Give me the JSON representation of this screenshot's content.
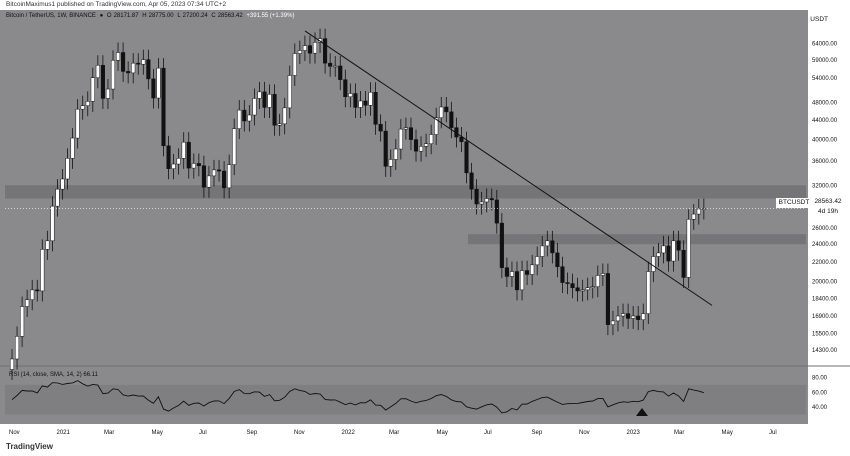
{
  "topbar": {
    "publisher_text": "BitcoinMaximus1 published on TradingView.com, Apr 05, 2023 07:34 UTC+2"
  },
  "hud": {
    "symbol": "Bitcoin / TetherUS, 1W, BINANCE",
    "open": "28171.87",
    "high": "28775.00",
    "low": "27200.24",
    "close": "28563.42",
    "change": "+391.55 (+1.39%)"
  },
  "price_axis": {
    "currency": "USDT",
    "ticks": [
      "64000.00",
      "59000.00",
      "54000.00",
      "48000.00",
      "44000.00",
      "40000.00",
      "36000.00",
      "32000.00",
      "26000.00",
      "24000.00",
      "22000.00",
      "20000.00",
      "18400.00",
      "16900.00",
      "15500.00",
      "14300.00"
    ]
  },
  "current_price": {
    "symbol": "BTCUSDT",
    "price": "28563.42",
    "countdown": "4d 19h"
  },
  "rsi": {
    "legend": "RSI (14, close, SMA, 14, 2) 66.11",
    "ticks": [
      "80.00",
      "60.00",
      "40.00"
    ],
    "value": 66.11
  },
  "time_axis": [
    "Nov",
    "2021",
    "Mar",
    "May",
    "Jul",
    "Sep",
    "Nov",
    "2022",
    "Mar",
    "May",
    "Jul",
    "Sep",
    "Nov",
    "2023",
    "Mar",
    "May",
    "Jul"
  ],
  "footer": {
    "logo_text": "TradingView"
  },
  "chart_data": {
    "type": "candlestick",
    "title": "Bitcoin / TetherUS, 1W, BINANCE",
    "ylabel": "USDT",
    "ylim": [
      13500,
      70000
    ],
    "scale": "log",
    "support_zones": [
      [
        30000,
        32000
      ],
      [
        24000,
        25200
      ]
    ],
    "trendline": [
      {
        "date": "2021-11-08",
        "price": 68000
      },
      {
        "date": "2023-04-10",
        "price": 18000
      }
    ],
    "weeks_close": [
      13700,
      15300,
      17700,
      18300,
      19200,
      19100,
      23400,
      24400,
      28900,
      31400,
      33000,
      36500,
      40300,
      46400,
      47200,
      48200,
      54100,
      57500,
      48900,
      51200,
      58900,
      61200,
      55800,
      55400,
      58100,
      57800,
      59100,
      53800,
      49000,
      56700,
      38800,
      34700,
      35500,
      36500,
      39500,
      34800,
      35600,
      35200,
      31700,
      33500,
      34500,
      34300,
      31600,
      35400,
      42200,
      46200,
      43800,
      45100,
      48900,
      50500,
      46800,
      49900,
      42900,
      43200,
      46700,
      54700,
      60900,
      61800,
      63300,
      61000,
      64300,
      65500,
      58100,
      57200,
      57300,
      53600,
      49300,
      50100,
      46800,
      48300,
      47300,
      50400,
      43100,
      41700,
      35100,
      36300,
      38200,
      42100,
      42400,
      40000,
      37800,
      38700,
      39200,
      41000,
      44500,
      46900,
      45800,
      42400,
      40500,
      39600,
      34000,
      31400,
      29200,
      29500,
      30000,
      29800,
      26600,
      21400,
      20500,
      21000,
      19200,
      21100,
      20700,
      21700,
      22600,
      23800,
      24400,
      23000,
      21500,
      19900,
      19800,
      19400,
      19100,
      19200,
      19400,
      19500,
      20600,
      20800,
      16200,
      16500,
      16900,
      17100,
      16700,
      16900,
      16600,
      17100,
      21000,
      22600,
      23000,
      23800,
      22100,
      24400,
      23300,
      20400,
      27100,
      27800,
      28500,
      28560
    ],
    "start_date": "2020-11-02",
    "interval": "1W",
    "rsi_range": [
      0,
      100
    ],
    "rsi_value": 66.11
  }
}
